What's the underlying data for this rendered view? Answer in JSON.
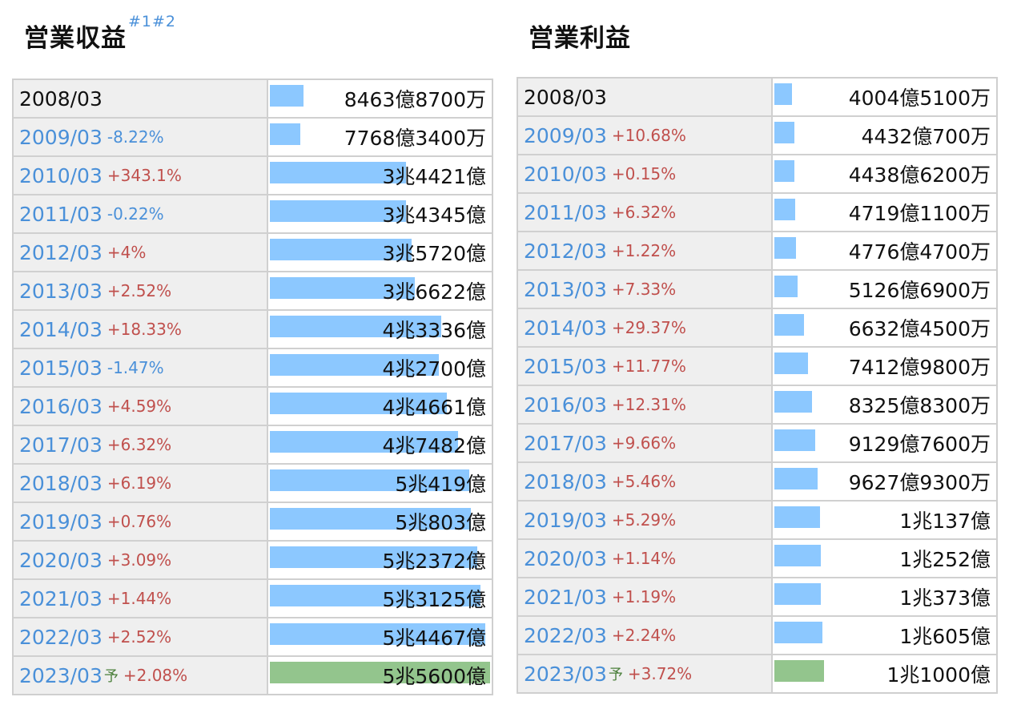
{
  "chart_data": [
    {
      "type": "bar",
      "title": "営業収益",
      "title_notes": "#1#2",
      "orientation": "horizontal",
      "max_value": 55600,
      "unit": "億円",
      "rows": [
        {
          "period": "2008/03",
          "change": "",
          "dir": "",
          "forecast": false,
          "display": "8463億8700万",
          "value": 8463.87
        },
        {
          "period": "2009/03",
          "change": "-8.22%",
          "dir": "down",
          "forecast": false,
          "display": "7768億3400万",
          "value": 7768.34
        },
        {
          "period": "2010/03",
          "change": "+343.1%",
          "dir": "up",
          "forecast": false,
          "display": "3兆4421億",
          "value": 34421
        },
        {
          "period": "2011/03",
          "change": "-0.22%",
          "dir": "down",
          "forecast": false,
          "display": "3兆4345億",
          "value": 34345
        },
        {
          "period": "2012/03",
          "change": "+4%",
          "dir": "up",
          "forecast": false,
          "display": "3兆5720億",
          "value": 35720
        },
        {
          "period": "2013/03",
          "change": "+2.52%",
          "dir": "up",
          "forecast": false,
          "display": "3兆6622億",
          "value": 36622
        },
        {
          "period": "2014/03",
          "change": "+18.33%",
          "dir": "up",
          "forecast": false,
          "display": "4兆3336億",
          "value": 43336
        },
        {
          "period": "2015/03",
          "change": "-1.47%",
          "dir": "down",
          "forecast": false,
          "display": "4兆2700億",
          "value": 42700
        },
        {
          "period": "2016/03",
          "change": "+4.59%",
          "dir": "up",
          "forecast": false,
          "display": "4兆4661億",
          "value": 44661
        },
        {
          "period": "2017/03",
          "change": "+6.32%",
          "dir": "up",
          "forecast": false,
          "display": "4兆7482億",
          "value": 47482
        },
        {
          "period": "2018/03",
          "change": "+6.19%",
          "dir": "up",
          "forecast": false,
          "display": "5兆419億",
          "value": 50419
        },
        {
          "period": "2019/03",
          "change": "+0.76%",
          "dir": "up",
          "forecast": false,
          "display": "5兆803億",
          "value": 50803
        },
        {
          "period": "2020/03",
          "change": "+3.09%",
          "dir": "up",
          "forecast": false,
          "display": "5兆2372億",
          "value": 52372
        },
        {
          "period": "2021/03",
          "change": "+1.44%",
          "dir": "up",
          "forecast": false,
          "display": "5兆3125億",
          "value": 53125
        },
        {
          "period": "2022/03",
          "change": "+2.52%",
          "dir": "up",
          "forecast": false,
          "display": "5兆4467億",
          "value": 54467
        },
        {
          "period": "2023/03",
          "change": "+2.08%",
          "dir": "up",
          "forecast": true,
          "forecast_mark": "予",
          "display": "5兆5600億",
          "value": 55600
        }
      ]
    },
    {
      "type": "bar",
      "title": "営業利益",
      "orientation": "horizontal",
      "max_value": 49000,
      "unit": "億円",
      "rows": [
        {
          "period": "2008/03",
          "change": "",
          "dir": "",
          "forecast": false,
          "display": "4004億5100万",
          "value": 4004.51
        },
        {
          "period": "2009/03",
          "change": "+10.68%",
          "dir": "up",
          "forecast": false,
          "display": "4432億700万",
          "value": 4432.07
        },
        {
          "period": "2010/03",
          "change": "+0.15%",
          "dir": "up",
          "forecast": false,
          "display": "4438億6200万",
          "value": 4438.62
        },
        {
          "period": "2011/03",
          "change": "+6.32%",
          "dir": "up",
          "forecast": false,
          "display": "4719億1100万",
          "value": 4719.11
        },
        {
          "period": "2012/03",
          "change": "+1.22%",
          "dir": "up",
          "forecast": false,
          "display": "4776億4700万",
          "value": 4776.47
        },
        {
          "period": "2013/03",
          "change": "+7.33%",
          "dir": "up",
          "forecast": false,
          "display": "5126億6900万",
          "value": 5126.69
        },
        {
          "period": "2014/03",
          "change": "+29.37%",
          "dir": "up",
          "forecast": false,
          "display": "6632億4500万",
          "value": 6632.45
        },
        {
          "period": "2015/03",
          "change": "+11.77%",
          "dir": "up",
          "forecast": false,
          "display": "7412億9800万",
          "value": 7412.98
        },
        {
          "period": "2016/03",
          "change": "+12.31%",
          "dir": "up",
          "forecast": false,
          "display": "8325億8300万",
          "value": 8325.83
        },
        {
          "period": "2017/03",
          "change": "+9.66%",
          "dir": "up",
          "forecast": false,
          "display": "9129億7600万",
          "value": 9129.76
        },
        {
          "period": "2018/03",
          "change": "+5.46%",
          "dir": "up",
          "forecast": false,
          "display": "9627億9300万",
          "value": 9627.93
        },
        {
          "period": "2019/03",
          "change": "+5.29%",
          "dir": "up",
          "forecast": false,
          "display": "1兆137億",
          "value": 10137
        },
        {
          "period": "2020/03",
          "change": "+1.14%",
          "dir": "up",
          "forecast": false,
          "display": "1兆252億",
          "value": 10252
        },
        {
          "period": "2021/03",
          "change": "+1.19%",
          "dir": "up",
          "forecast": false,
          "display": "1兆373億",
          "value": 10373
        },
        {
          "period": "2022/03",
          "change": "+2.24%",
          "dir": "up",
          "forecast": false,
          "display": "1兆605億",
          "value": 10605
        },
        {
          "period": "2023/03",
          "change": "+3.72%",
          "dir": "up",
          "forecast": true,
          "forecast_mark": "予",
          "display": "1兆1000億",
          "value": 11000
        }
      ]
    }
  ],
  "colors": {
    "bar": "#8cc8ff",
    "forecast_bar": "#93c58d",
    "increase": "#c0504d",
    "decrease": "#4a90d9",
    "link": "#4a90d9",
    "label_bg": "#efefef"
  }
}
